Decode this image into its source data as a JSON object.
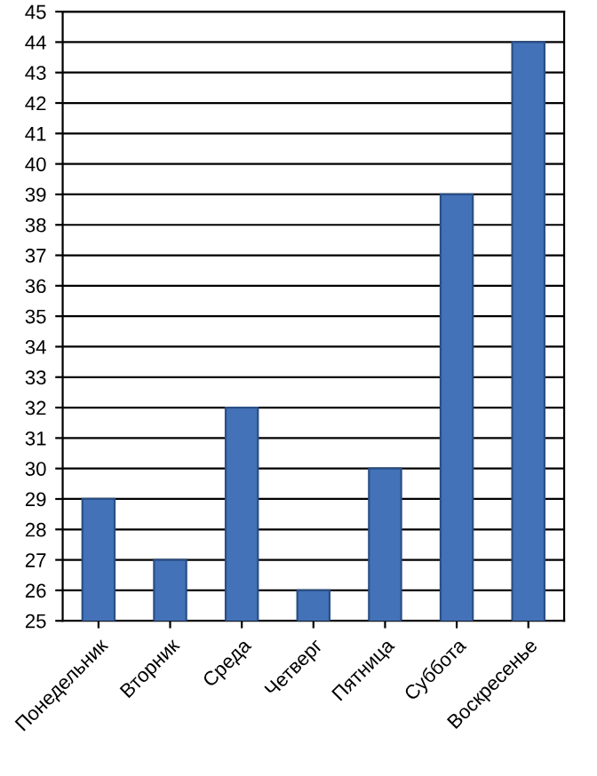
{
  "chart_data": {
    "type": "bar",
    "categories": [
      "Понедельник",
      "Вторник",
      "Среда",
      "Четверг",
      "Пятница",
      "Суббота",
      "Воскресенье"
    ],
    "values": [
      29,
      27,
      32,
      26,
      30,
      39,
      44
    ],
    "color": "#4372b8",
    "ylim": [
      25,
      45
    ],
    "yticks": [
      25,
      26,
      27,
      28,
      29,
      30,
      31,
      32,
      33,
      34,
      35,
      36,
      37,
      38,
      39,
      40,
      41,
      42,
      43,
      44,
      45
    ],
    "grid": "y",
    "legend": false
  }
}
